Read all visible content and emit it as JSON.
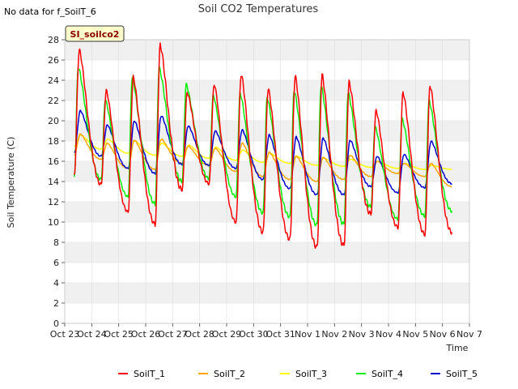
{
  "note": "No data for f_SoilT_6",
  "badge": "SI_soilco2",
  "colors": {
    "SoilT_1": "#ff0000",
    "SoilT_2": "#ffa500",
    "SoilT_3": "#ffff00",
    "SoilT_4": "#00ee00",
    "SoilT_5": "#0000cc",
    "band": "#f0f0f0",
    "grid": "#dddddd",
    "badge_bg": "#ffffcc"
  },
  "chart_data": {
    "type": "line",
    "title": "Soil CO2 Temperatures",
    "xlabel": "Time",
    "ylabel": "Soil Temperature (C)",
    "ylim": [
      0,
      28
    ],
    "yticks": [
      0,
      2,
      4,
      6,
      8,
      10,
      12,
      14,
      16,
      18,
      20,
      22,
      24,
      26,
      28
    ],
    "xlim": [
      0,
      15
    ],
    "xticks": [
      0,
      1,
      2,
      3,
      4,
      5,
      6,
      7,
      8,
      9,
      10,
      11,
      12,
      13,
      14,
      15
    ],
    "xtick_labels": [
      "Oct 23",
      "Oct 24",
      "Oct 25",
      "Oct 26",
      "Oct 27",
      "Oct 28",
      "Oct 29",
      "Oct 30",
      "Oct 31",
      "Nov 1",
      "Nov 2",
      "Nov 3",
      "Nov 4",
      "Nov 5",
      "Nov 6",
      "Nov 7"
    ],
    "x_units": "days since Oct 23",
    "grid": true,
    "legend_position": "bottom",
    "series": [
      {
        "name": "SoilT_1",
        "daily": [
          [
            14.5,
            27.0
          ],
          [
            13.7,
            23.0
          ],
          [
            11.0,
            24.3
          ],
          [
            9.8,
            27.5
          ],
          [
            13.2,
            22.8
          ],
          [
            13.8,
            23.6
          ],
          [
            10.0,
            24.6
          ],
          [
            9.0,
            23.2
          ],
          [
            8.3,
            24.4
          ],
          [
            7.5,
            24.5
          ],
          [
            7.7,
            23.8
          ],
          [
            10.8,
            21.0
          ],
          [
            9.5,
            22.8
          ],
          [
            8.8,
            23.5
          ],
          [
            9.0,
            9.0
          ]
        ]
      },
      {
        "name": "SoilT_2",
        "daily": [
          [
            16.6,
            18.7
          ],
          [
            16.2,
            17.8
          ],
          [
            15.3,
            18.1
          ],
          [
            15.2,
            18.2
          ],
          [
            15.8,
            17.5
          ],
          [
            15.6,
            17.3
          ],
          [
            15.0,
            17.8
          ],
          [
            14.5,
            16.9
          ],
          [
            14.2,
            16.5
          ],
          [
            14.0,
            16.4
          ],
          [
            14.2,
            16.6
          ],
          [
            14.5,
            16.0
          ],
          [
            14.8,
            15.8
          ],
          [
            14.5,
            15.8
          ],
          [
            13.5,
            13.5
          ]
        ]
      },
      {
        "name": "SoilT_3",
        "daily": [
          [
            17.5,
            18.6
          ],
          [
            17.2,
            18.2
          ],
          [
            16.8,
            18.0
          ],
          [
            16.6,
            17.8
          ],
          [
            16.5,
            17.6
          ],
          [
            16.3,
            17.4
          ],
          [
            16.1,
            17.1
          ],
          [
            15.9,
            16.8
          ],
          [
            15.8,
            16.5
          ],
          [
            15.6,
            16.3
          ],
          [
            15.5,
            16.2
          ],
          [
            15.4,
            16.0
          ],
          [
            15.3,
            15.8
          ],
          [
            15.2,
            15.6
          ],
          [
            15.2,
            15.2
          ]
        ]
      },
      {
        "name": "SoilT_4",
        "daily": [
          [
            14.3,
            25.3
          ],
          [
            14.2,
            22.1
          ],
          [
            12.5,
            24.3
          ],
          [
            11.8,
            25.2
          ],
          [
            14.0,
            23.6
          ],
          [
            14.3,
            22.5
          ],
          [
            12.5,
            22.7
          ],
          [
            10.9,
            22.3
          ],
          [
            10.5,
            23.0
          ],
          [
            9.7,
            23.5
          ],
          [
            9.8,
            22.8
          ],
          [
            11.5,
            19.4
          ],
          [
            10.3,
            20.2
          ],
          [
            10.6,
            22.0
          ],
          [
            11.1,
            11.1
          ]
        ]
      },
      {
        "name": "SoilT_5",
        "daily": [
          [
            16.8,
            21.0
          ],
          [
            16.5,
            19.6
          ],
          [
            15.3,
            20.0
          ],
          [
            14.8,
            20.5
          ],
          [
            15.7,
            19.5
          ],
          [
            15.6,
            19.0
          ],
          [
            15.3,
            19.1
          ],
          [
            14.2,
            18.6
          ],
          [
            13.3,
            18.4
          ],
          [
            12.7,
            18.3
          ],
          [
            12.7,
            18.1
          ],
          [
            13.5,
            16.5
          ],
          [
            12.9,
            16.7
          ],
          [
            13.4,
            18.0
          ],
          [
            13.8,
            13.8
          ]
        ]
      }
    ],
    "last_x": 14.35
  }
}
